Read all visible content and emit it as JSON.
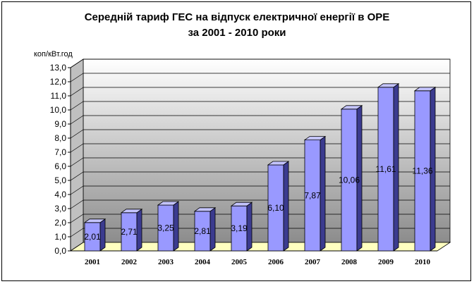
{
  "chart_data": {
    "type": "bar",
    "title_line1": "Середній тариф ГЕС на відпуск електричної енергії в ОРЕ",
    "title_line2": "за 2001 - 2010 роки",
    "ylabel": "коп/кВт.год",
    "categories": [
      "2001",
      "2002",
      "2003",
      "2004",
      "2005",
      "2006",
      "2007",
      "2008",
      "2009",
      "2010"
    ],
    "values": [
      2.01,
      2.71,
      3.25,
      2.81,
      3.19,
      6.1,
      7.87,
      10.06,
      11.61,
      11.36
    ],
    "value_labels": [
      "2,01",
      "2,71",
      "3,25",
      "2,81",
      "3,19",
      "6,10",
      "7,87",
      "10,06",
      "11,61",
      "11,36"
    ],
    "ylim": [
      0,
      13
    ],
    "yticks": [
      "0,0",
      "1,0",
      "2,0",
      "3,0",
      "4,0",
      "5,0",
      "6,0",
      "7,0",
      "8,0",
      "9,0",
      "10,0",
      "11,0",
      "12,0",
      "13,0"
    ],
    "grid": true,
    "colors": {
      "bar_front": "#9999ff",
      "bar_side": "#3b3b8f",
      "bar_top": "#c4c4ff",
      "floor": "#ffffc0"
    }
  }
}
